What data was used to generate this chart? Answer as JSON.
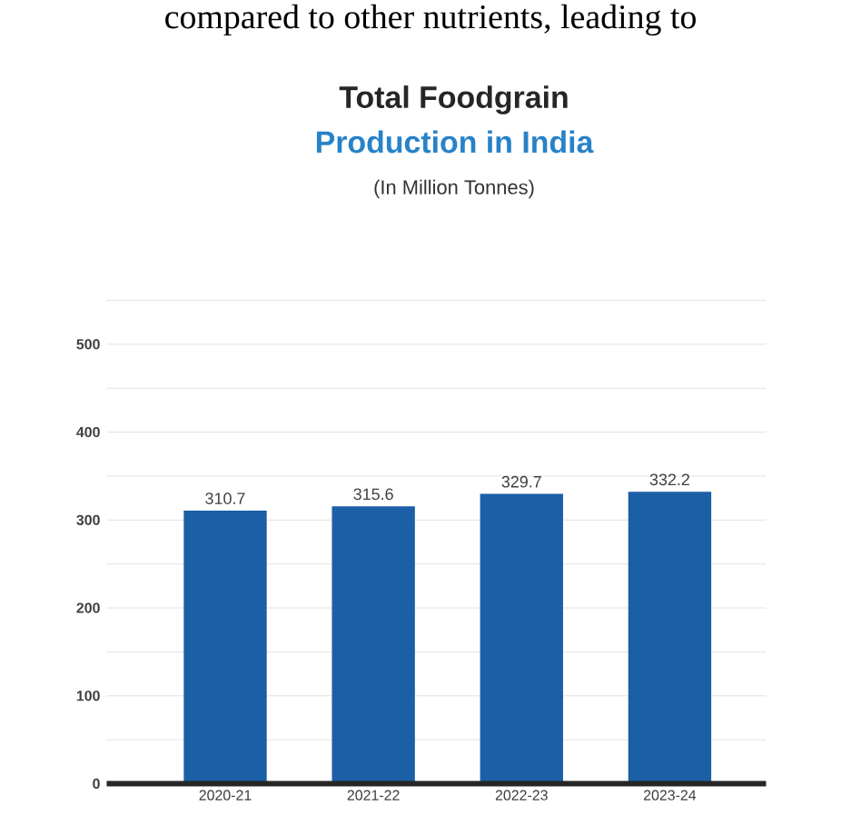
{
  "chart_data": {
    "type": "bar",
    "title": "Total Foodgrain",
    "subtitle": "Production in India",
    "annotations": [
      "(In Million Tonnes)",
      "compared to other nutrients, leading to"
    ],
    "categories": [
      "2020-21",
      "2021-22",
      "2022-23",
      "2023-24"
    ],
    "values": [
      310.7,
      315.6,
      329.7,
      332.2
    ],
    "color": "#1b5fa6",
    "ylim": [
      0,
      550
    ],
    "yticks": [
      0,
      {
        "value": 50,
        "label": null
      },
      100,
      {
        "value": 150,
        "label": null
      },
      200,
      {
        "value": 250,
        "label": null
      },
      300,
      {
        "value": 350,
        "label": null
      },
      400,
      {
        "value": 450,
        "label": null
      },
      500,
      {
        "value": 550,
        "label": null
      }
    ],
    "grid": "y",
    "data_labels": true
  }
}
